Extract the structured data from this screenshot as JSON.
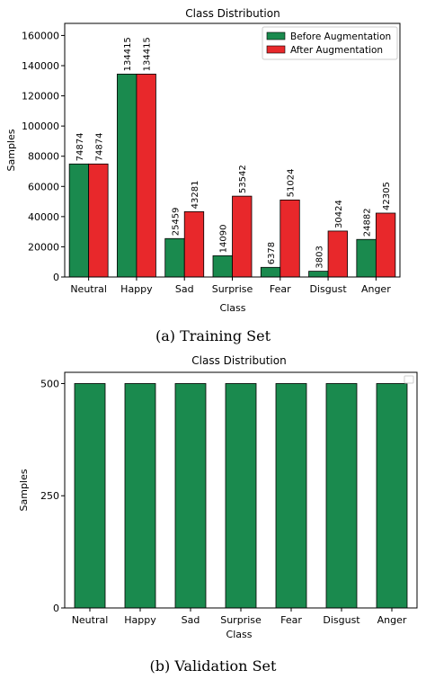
{
  "figure": {
    "captions": [
      "(a) Training Set",
      "(b) Validation Set"
    ]
  },
  "colors": {
    "before": "#1a8a4e",
    "after": "#e8282b",
    "validation": "#1a8a4e"
  },
  "chart_data": [
    {
      "type": "bar",
      "title": "Class Distribution",
      "xlabel": "Class",
      "ylabel": "Samples",
      "categories": [
        "Neutral",
        "Happy",
        "Sad",
        "Surprise",
        "Fear",
        "Disgust",
        "Anger"
      ],
      "series": [
        {
          "name": "Before Augmentation",
          "values": [
            74874,
            134415,
            25459,
            14090,
            6378,
            3803,
            24882
          ]
        },
        {
          "name": "After Augmentation",
          "values": [
            74874,
            134415,
            43281,
            53542,
            51024,
            30424,
            42305
          ]
        }
      ],
      "ylim": [
        0,
        168000
      ],
      "yticks": [
        0,
        20000,
        40000,
        60000,
        80000,
        100000,
        120000,
        140000,
        160000
      ],
      "data_labels": true,
      "legend": "top-right",
      "grid": false
    },
    {
      "type": "bar",
      "title": "Class Distribution",
      "xlabel": "Class",
      "ylabel": "Samples",
      "categories": [
        "Neutral",
        "Happy",
        "Sad",
        "Surprise",
        "Fear",
        "Disgust",
        "Anger"
      ],
      "series": [
        {
          "values": [
            500,
            500,
            500,
            500,
            500,
            500,
            500
          ]
        }
      ],
      "ylim": [
        0,
        525
      ],
      "yticks": [
        0,
        250,
        500
      ],
      "legend": "top-right",
      "grid": false
    }
  ]
}
